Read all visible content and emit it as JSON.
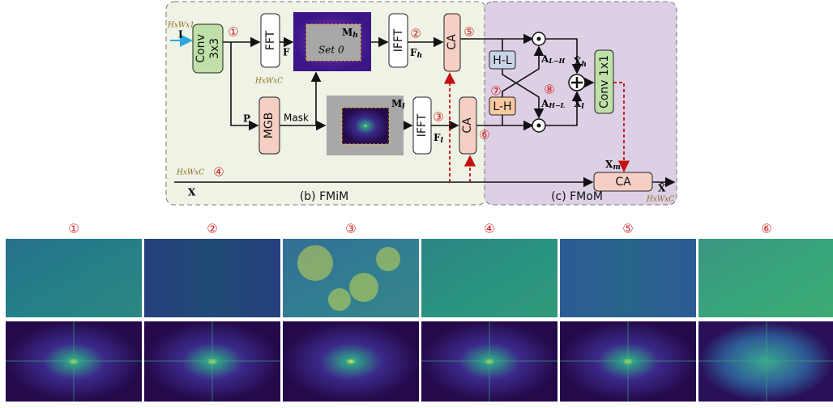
{
  "diagram": {
    "panels": {
      "fmim": "(b) FMiM",
      "fmom": "(c) FMoM"
    },
    "blocks": {
      "conv3_a": "Conv",
      "conv3_b": "3x3",
      "fft": "FFT",
      "ifft_h": "IFFT",
      "ca_h": "CA",
      "mgb": "MGB",
      "ifft_l": "IFFT",
      "ca_l": "CA",
      "hl": "H-L",
      "lh": "L-H",
      "conv1": "Conv 1x1",
      "ca_out": "CA"
    },
    "labels": {
      "input": "I",
      "input_shape": "HxWx1",
      "f": "F",
      "f_shape": "HxWxC",
      "p": "P",
      "mask": "Mask",
      "set0": "Set 0",
      "mh": {
        "main": "M",
        "sub": "h"
      },
      "ml": {
        "main": "M",
        "sub": "l"
      },
      "fh": {
        "main": "F",
        "sub": "h"
      },
      "fl": {
        "main": "F",
        "sub": "l"
      },
      "alh": {
        "main": "A",
        "sub": "L−H"
      },
      "ahl": {
        "main": "A",
        "sub": "H−L"
      },
      "xh": {
        "main": "X̂",
        "sub": "h"
      },
      "xl": {
        "main": "X̂",
        "sub": "l"
      },
      "xm": {
        "main": "X",
        "sub": "m"
      },
      "x": "X",
      "x_shape": "HxWxC",
      "out": "X̃",
      "out_shape": "HxWxC"
    },
    "markers": [
      "①",
      "②",
      "③",
      "④",
      "⑤",
      "⑥",
      "⑦",
      "⑧"
    ]
  },
  "figure": {
    "columns": [
      "①",
      "②",
      "③",
      "④",
      "⑤",
      "⑥"
    ]
  }
}
